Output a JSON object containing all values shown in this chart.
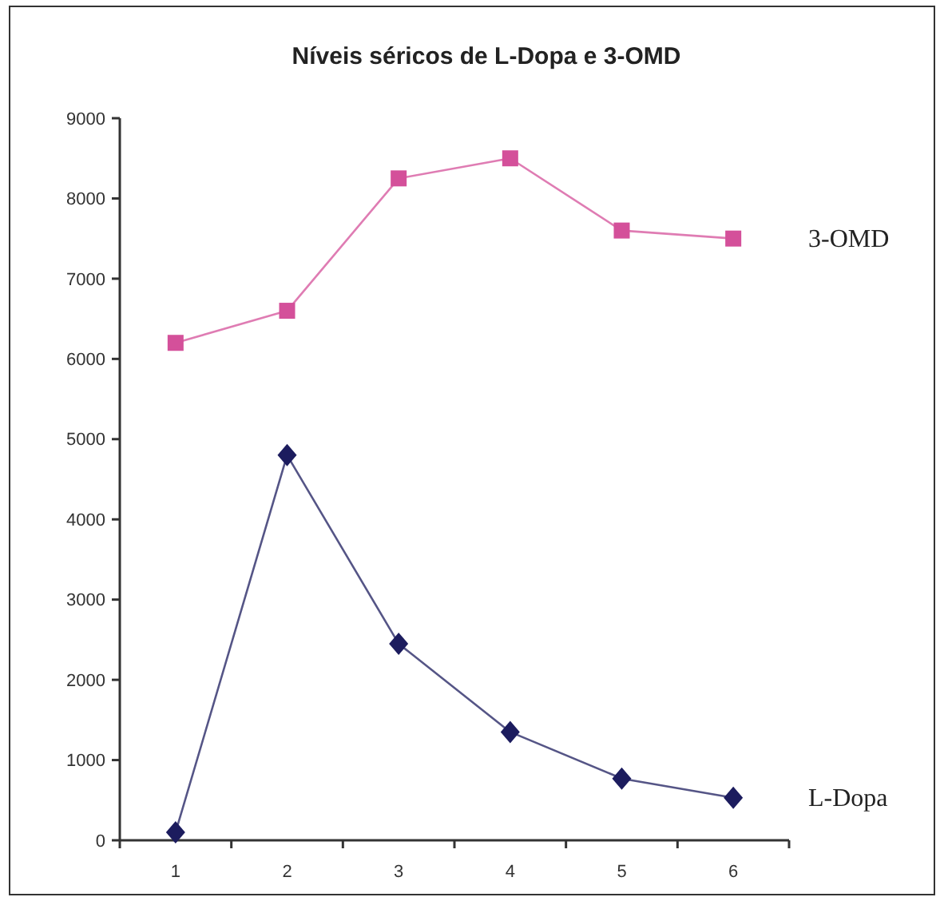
{
  "chart_data": {
    "type": "line",
    "title": "Níveis séricos de L-Dopa  e  3-OMD",
    "categories": [
      "1",
      "2",
      "3",
      "4",
      "5",
      "6"
    ],
    "series": [
      {
        "name": "3-OMD",
        "color": "#d4509a",
        "marker": "square",
        "values": [
          6200,
          6600,
          8250,
          8500,
          7600,
          7500
        ]
      },
      {
        "name": "L-Dopa",
        "color": "#1c1c5e",
        "marker": "diamond",
        "values": [
          100,
          4800,
          2450,
          1350,
          770,
          530
        ]
      }
    ],
    "ylim": [
      0,
      9000
    ],
    "yticks": [
      0,
      1000,
      2000,
      3000,
      4000,
      5000,
      6000,
      7000,
      8000,
      9000
    ],
    "grid": false,
    "legend": false,
    "line_style": "solid"
  }
}
